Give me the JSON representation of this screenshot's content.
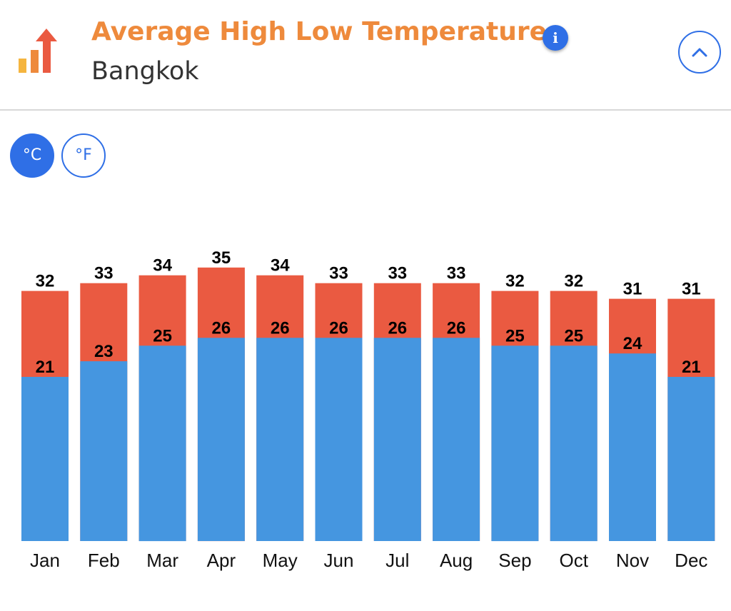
{
  "header": {
    "title": "Average High Low Temperature",
    "subtitle": "Bangkok",
    "info_label": "i"
  },
  "units": {
    "celsius_label": "°C",
    "fahrenheit_label": "°F",
    "selected": "celsius"
  },
  "colors": {
    "title": "#ee8a3c",
    "accent": "#2f6fe6",
    "high_bar": "#ea5a41",
    "low_bar": "#4596e0"
  },
  "icons": {
    "logo": "bar-chart-up-arrow-icon",
    "info": "info-icon",
    "collapse": "chevron-up-icon"
  },
  "chart_data": {
    "type": "bar",
    "categories": [
      "Jan",
      "Feb",
      "Mar",
      "Apr",
      "May",
      "Jun",
      "Jul",
      "Aug",
      "Sep",
      "Oct",
      "Nov",
      "Dec"
    ],
    "series": [
      {
        "values": [
          32,
          33,
          34,
          35,
          34,
          33,
          33,
          33,
          32,
          32,
          31,
          31
        ],
        "color": "#ea5a41"
      },
      {
        "values": [
          21,
          23,
          25,
          26,
          26,
          26,
          26,
          26,
          25,
          25,
          24,
          21
        ],
        "color": "#4596e0"
      }
    ],
    "title": "",
    "xlabel": "",
    "ylabel": "",
    "ylim": [
      0,
      35
    ],
    "grid": false,
    "legend": "none"
  }
}
